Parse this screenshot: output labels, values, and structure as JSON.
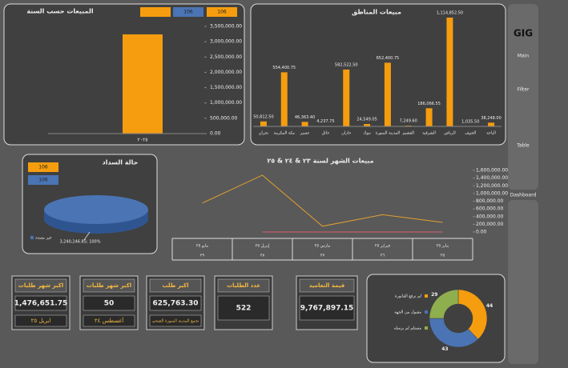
{
  "chart_data": [
    {
      "type": "bar",
      "title": "المبيعات حسب السنة",
      "legend": [
        "106",
        "106"
      ],
      "categories": [
        "٢٠٢٥"
      ],
      "values": [
        3240246.85
      ],
      "color": "#f59d0e",
      "ylim": [
        0,
        3500000
      ],
      "yticks": [
        {
          "value": 0,
          "label": "0.00"
        },
        {
          "value": 500000,
          "label": "500,000.00"
        },
        {
          "value": 1000000,
          "label": "1,000,000.00"
        },
        {
          "value": 1500000,
          "label": "1,500,000.00"
        },
        {
          "value": 2000000,
          "label": "2,000,000.00"
        },
        {
          "value": 2500000,
          "label": "2,500,000.00"
        },
        {
          "value": 3000000,
          "label": "3,000,000.00"
        },
        {
          "value": 3500000,
          "label": "3,500,000.00"
        }
      ]
    },
    {
      "type": "bar",
      "title": "مبيعات المناطق",
      "categories": [
        "نجران",
        "مكة المكرمة",
        "عسير",
        "حائل",
        "جازان",
        "تبوك",
        "المدينة المنورة",
        "القصيم",
        "الشرقية",
        "الرياض",
        "الجوف",
        "الباحة"
      ],
      "values": [
        50812.5,
        554400.75,
        46363.4,
        4237.75,
        582522.5,
        24549.05,
        652400.75,
        7249.6,
        186066.55,
        1114852.5,
        1035.5,
        38248
      ],
      "value_labels": [
        "50,812.50",
        "554,400.75",
        "46,363.40",
        "4,237.75",
        "582,522.50",
        "24,549.05",
        "652,400.75",
        "7,249.60",
        "186,066.55",
        "1,114,852.50",
        "1,035.50",
        "38,248.00"
      ],
      "color": "#f59d0e"
    },
    {
      "type": "pie",
      "title": "حالة السداد",
      "legend": [
        "106",
        "106"
      ],
      "categories": [
        "غير مسدد"
      ],
      "values": [
        3240246.85
      ],
      "value_labels": [
        "3,240,246.85; 100%"
      ],
      "color": "#4a74b4"
    },
    {
      "type": "line",
      "title": "مبيعات الشهر لسنة ٢٣ & ٢٤ & ٢٥",
      "categories": [
        "مايو ٢٥",
        "إبريل ٢٥",
        "مارس ٢٥",
        "فبراير ٢٥",
        "يناير ٢٥"
      ],
      "row_labels": [
        "٢٩",
        "٢٨",
        "٢٧",
        "٢٦",
        "٢٥"
      ],
      "series": [
        {
          "color": "#e0a030",
          "values": [
            750000,
            1476651.75,
            150000,
            450000,
            250000
          ]
        },
        {
          "color": "#e05a6e",
          "values": [
            null,
            0,
            0,
            0,
            0
          ]
        }
      ],
      "ylim": [
        0,
        1600000
      ],
      "yticks": [
        {
          "value": 0,
          "label": "0.00"
        },
        {
          "value": 200000,
          "label": "200,000.00"
        },
        {
          "value": 400000,
          "label": "400,000.00"
        },
        {
          "value": 600000,
          "label": "600,000.00"
        },
        {
          "value": 800000,
          "label": "800,000.00"
        },
        {
          "value": 1000000,
          "label": "1,000,000.00"
        },
        {
          "value": 1200000,
          "label": "1,200,000.00"
        },
        {
          "value": 1400000,
          "label": "1,400,000.00"
        },
        {
          "value": 1600000,
          "label": "1,600,000.00"
        }
      ]
    },
    {
      "type": "donut",
      "categories": [
        "لم ترفع الفاتورة",
        "مقبول من الجهة",
        "مستلم لم يرسله"
      ],
      "values": [
        44,
        43,
        29
      ],
      "colors": [
        "#f59d0e",
        "#4a74b4",
        "#8fae4e"
      ]
    }
  ],
  "kpis": [
    {
      "title": "اكبر شهر طلبات",
      "value": "1,476,651.75",
      "footer": "ابريل ٢٥"
    },
    {
      "title": "اكبر شهر طلبات",
      "value": "50",
      "footer": "أغسطس ٢٤"
    },
    {
      "title": "اكبر طلب",
      "value": "625,763.30",
      "footer": "تجمع المدينة المنورة الصحي"
    },
    {
      "title": "عدد الطلبات",
      "value": "522"
    },
    {
      "title": "قيمة التعاميد",
      "value": "9,767,897.15"
    }
  ],
  "nav": {
    "logo": "GIG",
    "items": [
      "Main",
      "Filter",
      "Table",
      "Dashboard"
    ]
  }
}
